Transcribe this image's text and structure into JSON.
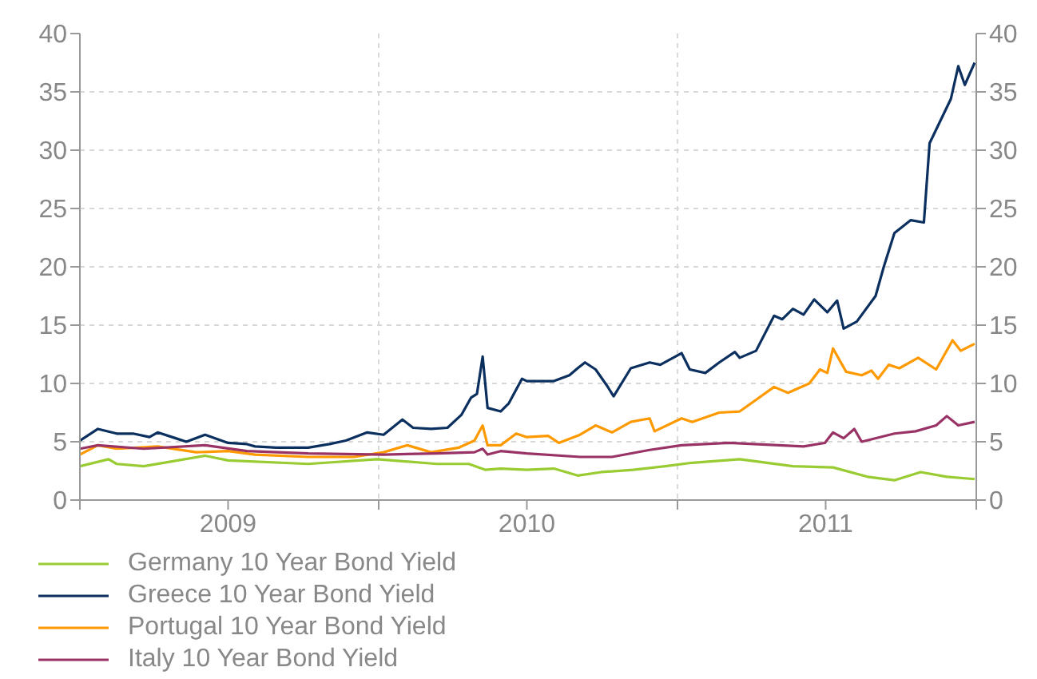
{
  "chart_data": {
    "type": "line",
    "xlim": [
      "2009-01-01",
      "2012-01-01"
    ],
    "xticks": [
      {
        "value": "2009-01-01",
        "label": null
      },
      {
        "value": "2009-07-01",
        "label": "2009"
      },
      {
        "value": "2010-01-01",
        "label": null
      },
      {
        "value": "2010-07-01",
        "label": "2010"
      },
      {
        "value": "2011-01-01",
        "label": null
      },
      {
        "value": "2011-07-01",
        "label": "2011"
      },
      {
        "value": "2012-01-01",
        "label": null
      }
    ],
    "ylim": [
      0,
      40
    ],
    "yticks": [
      0,
      5,
      10,
      15,
      20,
      25,
      30,
      35,
      40
    ],
    "y2lim": [
      0,
      40
    ],
    "y2ticks": [
      0,
      5,
      10,
      15,
      20,
      25,
      30,
      35,
      40
    ],
    "grid": true,
    "legend": "bottom left",
    "marker": "none",
    "line_style": "solid",
    "series": [
      {
        "name": "Germany 10 Year Bond Yield",
        "color": "#99cc33",
        "x": [
          "2009-01-01",
          "2009-02-05",
          "2009-02-15",
          "2009-03-20",
          "2009-06-03",
          "2009-07-01",
          "2009-10-07",
          "2009-12-30",
          "2010-03-13",
          "2010-04-21",
          "2010-05-11",
          "2010-05-30",
          "2010-07-01",
          "2010-08-03",
          "2010-09-01",
          "2010-09-30",
          "2010-11-08",
          "2010-12-17",
          "2011-01-19",
          "2011-03-18",
          "2011-05-22",
          "2011-07-10",
          "2011-08-21",
          "2011-09-23",
          "2011-10-25",
          "2011-11-26",
          "2011-12-30"
        ],
        "values": [
          2.9,
          3.5,
          3.1,
          2.9,
          3.8,
          3.4,
          3.1,
          3.5,
          3.1,
          3.1,
          2.6,
          2.7,
          2.6,
          2.7,
          2.1,
          2.4,
          2.6,
          2.9,
          3.2,
          3.5,
          2.9,
          2.8,
          2.0,
          1.7,
          2.4,
          2.0,
          1.8
        ]
      },
      {
        "name": "Greece 10 Year Bond Yield",
        "color": "#0b2f5e",
        "x": [
          "2009-01-01",
          "2009-01-23",
          "2009-02-15",
          "2009-03-07",
          "2009-03-27",
          "2009-04-06",
          "2009-04-28",
          "2009-05-11",
          "2009-06-03",
          "2009-07-01",
          "2009-07-24",
          "2009-08-03",
          "2009-08-29",
          "2009-10-07",
          "2009-11-02",
          "2009-11-22",
          "2009-12-18",
          "2010-01-07",
          "2010-01-30",
          "2010-02-12",
          "2010-03-06",
          "2010-03-26",
          "2010-04-12",
          "2010-04-24",
          "2010-05-01",
          "2010-05-08",
          "2010-05-14",
          "2010-05-30",
          "2010-06-09",
          "2010-06-25",
          "2010-07-01",
          "2010-08-03",
          "2010-08-22",
          "2010-09-01",
          "2010-09-10",
          "2010-09-23",
          "2010-10-06",
          "2010-10-15",
          "2010-11-05",
          "2010-11-28",
          "2010-12-11",
          "2011-01-06",
          "2011-01-16",
          "2011-02-04",
          "2011-02-21",
          "2011-03-12",
          "2011-03-18",
          "2011-04-07",
          "2011-04-29",
          "2011-05-09",
          "2011-05-22",
          "2011-06-04",
          "2011-06-17",
          "2011-07-03",
          "2011-07-15",
          "2011-07-23",
          "2011-08-08",
          "2011-08-31",
          "2011-09-10",
          "2011-09-23",
          "2011-10-13",
          "2011-10-29",
          "2011-11-05",
          "2011-12-01",
          "2011-12-10",
          "2011-12-18",
          "2011-12-30"
        ],
        "values": [
          5.1,
          6.1,
          5.7,
          5.7,
          5.4,
          5.8,
          5.3,
          5.0,
          5.6,
          4.9,
          4.8,
          4.6,
          4.5,
          4.5,
          4.8,
          5.1,
          5.8,
          5.6,
          6.9,
          6.2,
          6.1,
          6.2,
          7.3,
          8.8,
          9.1,
          12.3,
          7.9,
          7.6,
          8.3,
          10.4,
          10.2,
          10.2,
          10.7,
          11.3,
          11.8,
          11.2,
          9.9,
          8.9,
          11.3,
          11.8,
          11.6,
          12.6,
          11.2,
          10.9,
          11.8,
          12.7,
          12.2,
          12.8,
          15.8,
          15.5,
          16.4,
          15.9,
          17.2,
          16.1,
          17.1,
          14.7,
          15.3,
          17.5,
          20.0,
          22.9,
          24.0,
          23.8,
          30.6,
          34.4,
          37.2,
          35.6,
          37.5
        ]
      },
      {
        "name": "Portugal 10 Year Bond Yield",
        "color": "#ff9900",
        "x": [
          "2009-01-01",
          "2009-01-23",
          "2009-02-15",
          "2009-04-06",
          "2009-05-23",
          "2009-07-01",
          "2009-08-03",
          "2009-10-07",
          "2009-12-02",
          "2010-01-07",
          "2010-02-05",
          "2010-03-06",
          "2010-04-09",
          "2010-04-28",
          "2010-05-08",
          "2010-05-14",
          "2010-05-30",
          "2010-06-18",
          "2010-07-01",
          "2010-07-27",
          "2010-08-09",
          "2010-09-04",
          "2010-09-23",
          "2010-10-13",
          "2010-11-05",
          "2010-11-28",
          "2010-12-04",
          "2011-01-06",
          "2011-01-19",
          "2011-02-21",
          "2011-03-18",
          "2011-04-07",
          "2011-04-29",
          "2011-05-16",
          "2011-06-11",
          "2011-06-24",
          "2011-07-03",
          "2011-07-10",
          "2011-07-26",
          "2011-08-14",
          "2011-08-26",
          "2011-09-03",
          "2011-09-16",
          "2011-09-29",
          "2011-10-22",
          "2011-11-13",
          "2011-12-03",
          "2011-12-13",
          "2011-12-30"
        ],
        "values": [
          3.9,
          4.7,
          4.4,
          4.6,
          4.1,
          4.2,
          3.9,
          3.7,
          3.7,
          4.1,
          4.7,
          4.1,
          4.5,
          5.1,
          6.4,
          4.7,
          4.7,
          5.7,
          5.4,
          5.5,
          4.9,
          5.6,
          6.4,
          5.8,
          6.7,
          7.0,
          5.9,
          7.0,
          6.7,
          7.5,
          7.6,
          8.6,
          9.7,
          9.2,
          10.0,
          11.2,
          10.9,
          13.0,
          11.0,
          10.7,
          11.1,
          10.4,
          11.6,
          11.3,
          12.2,
          11.2,
          13.7,
          12.8,
          13.4
        ]
      },
      {
        "name": "Italy 10 Year Bond Yield",
        "color": "#993366",
        "x": [
          "2009-01-01",
          "2009-01-23",
          "2009-03-20",
          "2009-06-03",
          "2009-07-24",
          "2009-10-07",
          "2010-01-07",
          "2010-03-13",
          "2010-04-28",
          "2010-05-08",
          "2010-05-14",
          "2010-05-30",
          "2010-07-01",
          "2010-09-04",
          "2010-10-13",
          "2010-11-28",
          "2011-01-06",
          "2011-03-05",
          "2011-06-04",
          "2011-06-30",
          "2011-07-10",
          "2011-07-23",
          "2011-08-05",
          "2011-08-14",
          "2011-09-23",
          "2011-10-19",
          "2011-11-13",
          "2011-11-26",
          "2011-12-10",
          "2011-12-30"
        ],
        "values": [
          4.4,
          4.7,
          4.4,
          4.7,
          4.2,
          4.0,
          3.9,
          4.0,
          4.1,
          4.4,
          3.9,
          4.2,
          4.0,
          3.7,
          3.7,
          4.3,
          4.7,
          4.9,
          4.6,
          4.9,
          5.8,
          5.3,
          6.1,
          5.0,
          5.7,
          5.9,
          6.4,
          7.2,
          6.4,
          6.7
        ]
      }
    ]
  }
}
